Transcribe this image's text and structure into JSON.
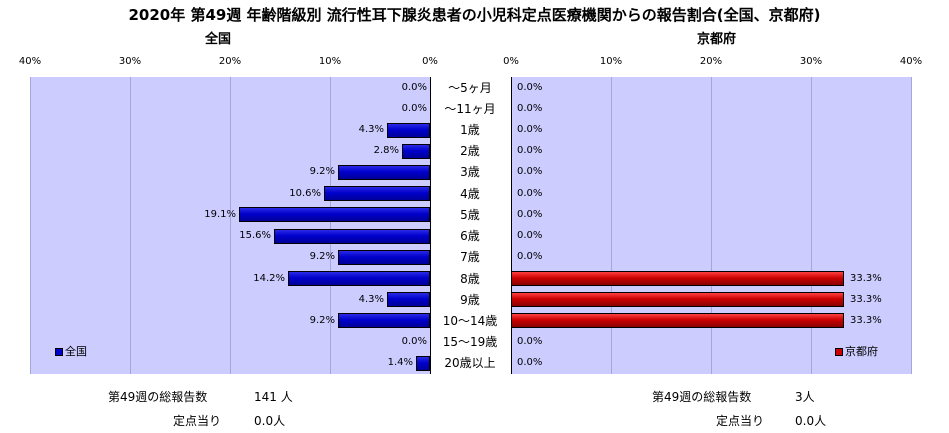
{
  "chart_data": {
    "type": "bar",
    "title": "2020年 第49週 年齢階級別 流行性耳下腺炎患者の小児科定点医療機関からの報告割合(全国、京都府)",
    "categories": [
      "～5ヶ月",
      "～11ヶ月",
      "1歳",
      "2歳",
      "3歳",
      "4歳",
      "5歳",
      "6歳",
      "7歳",
      "8歳",
      "9歳",
      "10～14歳",
      "15～19歳",
      "20歳以上"
    ],
    "xlim": [
      0,
      40
    ],
    "ticks": [
      "40%",
      "30%",
      "20%",
      "10%",
      "0%"
    ],
    "ticks_right": [
      "0%",
      "10%",
      "20%",
      "30%",
      "40%"
    ],
    "grid": true,
    "series": [
      {
        "name": "全国",
        "values": [
          0.0,
          0.0,
          4.3,
          2.8,
          9.2,
          10.6,
          19.1,
          15.6,
          9.2,
          14.2,
          4.3,
          9.2,
          0.0,
          1.4
        ],
        "color": "#0000cc",
        "legend_position": "bottom-left"
      },
      {
        "name": "京都府",
        "values": [
          0.0,
          0.0,
          0.0,
          0.0,
          0.0,
          0.0,
          0.0,
          0.0,
          0.0,
          33.3,
          33.3,
          33.3,
          0.0,
          0.0
        ],
        "color": "#cc0000",
        "legend_position": "bottom-right"
      }
    ],
    "panel_titles": {
      "left": "全国",
      "right": "京都府"
    }
  },
  "footer": {
    "left": {
      "total_label": "第49週の総報告数",
      "total_value": "141 人",
      "per_label": "定点当り",
      "per_value": "0.0人"
    },
    "right": {
      "total_label": "第49週の総報告数",
      "total_value": "3人",
      "per_label": "定点当り",
      "per_value": "0.0人"
    }
  }
}
